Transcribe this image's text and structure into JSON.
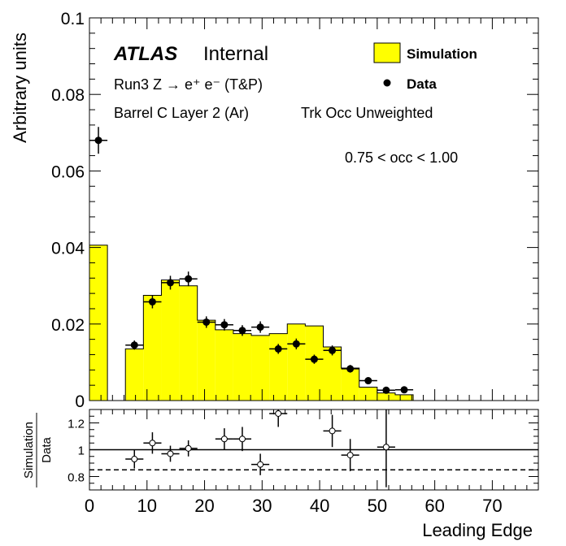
{
  "chart_data": [
    {
      "type": "histogram",
      "ylabel": "Arbitrary units",
      "xlim": [
        0,
        78
      ],
      "ylim": [
        0,
        0.1
      ],
      "yticks": [
        0,
        0.02,
        0.04,
        0.06,
        0.08,
        0.1
      ],
      "ytick_labels": [
        "0",
        "0.02",
        "0.04",
        "0.06",
        "0.08",
        "0.1"
      ],
      "bin_edges": [
        0,
        3.125,
        6.25,
        9.375,
        12.5,
        15.625,
        18.75,
        21.875,
        25,
        28.125,
        31.25,
        34.375,
        37.5,
        40.625,
        43.75,
        46.875,
        50,
        53.125,
        56.25,
        59.375,
        62.5,
        65.625,
        68.75,
        71.875,
        75,
        78.125
      ],
      "simulation": [
        0.0406,
        0,
        0.0135,
        0.0275,
        0.0315,
        0.03,
        0.021,
        0.0185,
        0.0175,
        0.017,
        0.0175,
        0.02,
        0.0195,
        0.014,
        0.0085,
        0.0035,
        0.002,
        0.0015,
        0,
        0,
        0,
        0,
        0,
        0,
        0
      ],
      "data": {
        "x": [
          1.56,
          7.81,
          10.94,
          14.06,
          17.19,
          20.31,
          23.44,
          26.56,
          29.69,
          32.81,
          35.94,
          39.06,
          42.19,
          45.31,
          48.44,
          51.56,
          54.69
        ],
        "y": [
          0.068,
          0.0145,
          0.0258,
          0.0308,
          0.0318,
          0.0205,
          0.0198,
          0.0183,
          0.0192,
          0.0135,
          0.0148,
          0.0108,
          0.0131,
          0.0083,
          0.0052,
          0.0027,
          0.0028
        ],
        "yerr": [
          0.0035,
          0.0012,
          0.0017,
          0.0018,
          0.0019,
          0.0015,
          0.0015,
          0.0014,
          0.0015,
          0.0013,
          0.0014,
          0.0012,
          0.0013,
          0.001,
          0.0007,
          0.0005,
          0.0005
        ]
      },
      "legend": [
        {
          "label": "Simulation",
          "style": "yellow-fill"
        },
        {
          "label": "Data",
          "style": "black-marker"
        }
      ],
      "colors": {
        "simulation_fill": "#ffff00",
        "line": "#000000"
      }
    },
    {
      "type": "ratio",
      "ylabel": "Simulation / Data",
      "ylabel_top": "Simulation",
      "ylabel_bottom": "Data",
      "xlabel": "Leading Edge",
      "xlim": [
        0,
        78
      ],
      "ylim": [
        0.7,
        1.3
      ],
      "yticks": [
        0.8,
        1,
        1.2
      ],
      "ytick_labels": [
        "0.8",
        "1",
        "1.2"
      ],
      "xticks": [
        0,
        10,
        20,
        30,
        40,
        50,
        60,
        70
      ],
      "xtick_labels": [
        "0",
        "10",
        "20",
        "30",
        "40",
        "50",
        "60",
        "70"
      ],
      "reference_line": 1.0,
      "dashed_line": 0.85,
      "points": {
        "x": [
          7.81,
          10.94,
          14.06,
          17.19,
          23.44,
          26.56,
          29.69,
          32.81,
          42.19,
          45.31,
          51.56
        ],
        "y": [
          0.93,
          1.05,
          0.97,
          1.01,
          1.08,
          1.08,
          0.89,
          1.27,
          1.14,
          0.96,
          1.02
        ],
        "yerr": [
          0.07,
          0.08,
          0.06,
          0.06,
          0.08,
          0.09,
          0.08,
          0.1,
          0.12,
          0.12,
          0.3
        ]
      }
    }
  ],
  "annotations": {
    "atlas": "ATLAS",
    "internal": "Internal",
    "line1": "Run3 Z → e⁺ e⁻ (T&P)",
    "line2": "Barrel C Layer 2 (Ar)",
    "line2b": "Trk Occ Unweighted",
    "range": "0.75 < occ < 1.00"
  }
}
